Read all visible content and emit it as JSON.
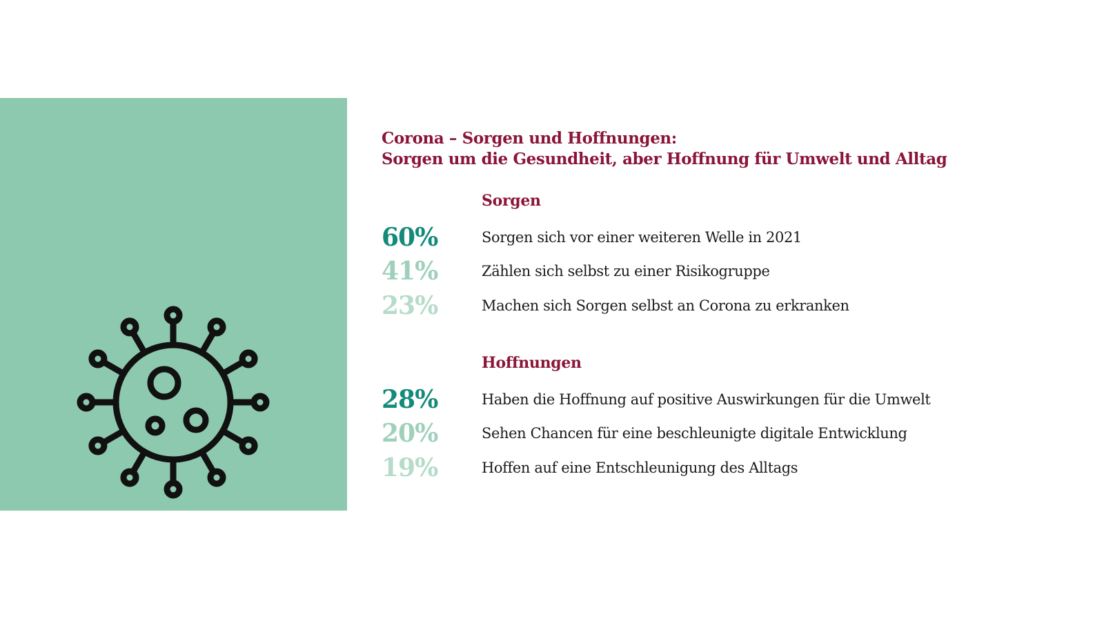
{
  "colors": {
    "panel_bg": "#8dc9ae",
    "title": "#8a1538",
    "pct_strong": "#138a7a",
    "pct_light": "#9fd0bb",
    "icon_stroke": "#111111"
  },
  "icon": "virus-icon",
  "title": {
    "line1": "Corona – Sorgen und Hoffnungen:",
    "line2": "Sorgen um die Gesundheit, aber Hoffnung für Umwelt und Alltag"
  },
  "sorgen": {
    "heading": "Sorgen",
    "items": [
      {
        "pct": "60%",
        "text": "Sorgen sich vor einer weiteren Welle in 2021"
      },
      {
        "pct": "41%",
        "text": "Zählen sich selbst zu einer Risikogruppe"
      },
      {
        "pct": "23%",
        "text": "Machen sich Sorgen selbst an Corona zu erkranken"
      }
    ]
  },
  "hoffnungen": {
    "heading": "Hoffnungen",
    "items": [
      {
        "pct": "28%",
        "text": "Haben die Hoffnung auf positive Auswirkungen für die Umwelt"
      },
      {
        "pct": "20%",
        "text": "Sehen Chancen für eine beschleunigte digitale Entwicklung"
      },
      {
        "pct": "19%",
        "text": "Hoffen auf eine Entschleunigung des Alltags"
      }
    ]
  }
}
